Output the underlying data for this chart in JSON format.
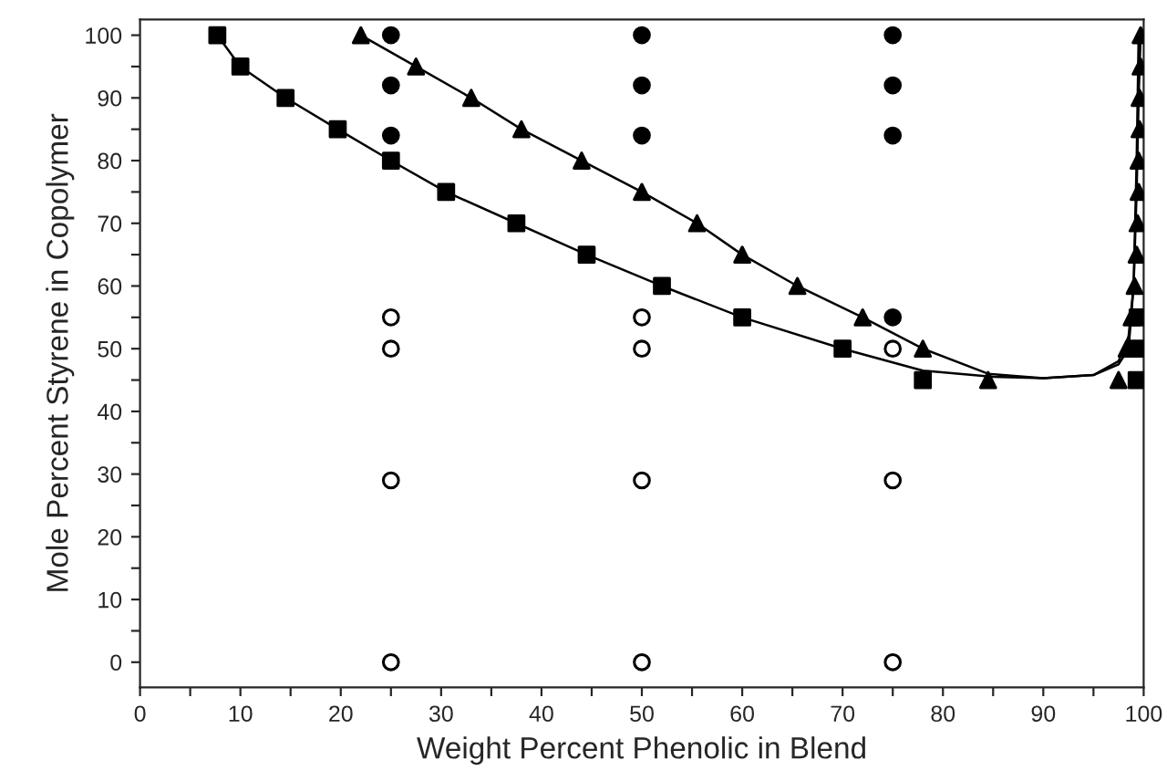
{
  "chart_data": {
    "type": "scatter",
    "xlabel": "Weight Percent Phenolic in Blend",
    "ylabel": "Mole Percent Styrene in Copolymer",
    "xlim": [
      0,
      100
    ],
    "ylim": [
      -4,
      102.5
    ],
    "xticks": [
      0,
      {
        "value": 5,
        "label": null
      },
      10,
      {
        "value": 15,
        "label": null
      },
      20,
      {
        "value": 25,
        "label": null
      },
      30,
      {
        "value": 35,
        "label": null
      },
      40,
      {
        "value": 45,
        "label": null
      },
      50,
      {
        "value": 55,
        "label": null
      },
      60,
      {
        "value": 65,
        "label": null
      },
      70,
      {
        "value": 75,
        "label": null
      },
      80,
      {
        "value": 85,
        "label": null
      },
      90,
      {
        "value": 95,
        "label": null
      },
      100
    ],
    "yticks": [
      0,
      {
        "value": 5,
        "label": null
      },
      10,
      {
        "value": 15,
        "label": null
      },
      20,
      {
        "value": 25,
        "label": null
      },
      30,
      {
        "value": 35,
        "label": null
      },
      40,
      {
        "value": 45,
        "label": null
      },
      50,
      {
        "value": 55,
        "label": null
      },
      60,
      {
        "value": 65,
        "label": null
      },
      70,
      {
        "value": 75,
        "label": null
      },
      80,
      {
        "value": 85,
        "label": null
      },
      90,
      {
        "value": 95,
        "label": null
      },
      100
    ],
    "grid": false,
    "legend": false,
    "series": [
      {
        "type": "line",
        "color": "#000000",
        "marker": "none",
        "x": [
          7.7,
          10,
          14.5,
          19.7,
          25,
          30.5,
          37.5,
          44.5,
          52,
          60,
          70,
          78,
          85,
          90,
          95,
          97.5,
          98.5,
          99,
          99.3,
          99.5
        ],
        "values": [
          100,
          95,
          90,
          85,
          80,
          75,
          70,
          65,
          60,
          55,
          50,
          46.5,
          45.5,
          45.3,
          45.8,
          47.5,
          50,
          60,
          80,
          100
        ]
      },
      {
        "type": "line",
        "color": "#000000",
        "marker": "none",
        "x": [
          22,
          27.5,
          33,
          38,
          44,
          50,
          55.5,
          60,
          65.5,
          72,
          78,
          84.5,
          90,
          95,
          97.5,
          98.5,
          99,
          99.3,
          99.5,
          99.7
        ],
        "values": [
          100,
          95,
          90,
          85,
          80,
          75,
          70,
          65,
          60,
          55,
          50,
          46,
          45.3,
          45.8,
          48,
          52,
          60,
          75,
          90,
          100
        ]
      },
      {
        "color": "#000000",
        "marker": "square",
        "x": [
          7.7,
          10,
          14.5,
          19.7,
          25,
          30.5,
          37.5,
          44.5,
          52,
          60,
          70,
          78,
          98.5,
          99.3,
          99.3,
          99.4
        ],
        "values": [
          100,
          95,
          90,
          85,
          80,
          75,
          70,
          65,
          60,
          55,
          50,
          45,
          null,
          45,
          50,
          55
        ]
      },
      {
        "color": "#000000",
        "marker": "triangle",
        "x": [
          22,
          27.5,
          33,
          38,
          44,
          50,
          55.5,
          60,
          65.5,
          72,
          78,
          84.5,
          97.5,
          98.3,
          98.8,
          99.1,
          99.3,
          99.4,
          99.5,
          99.5,
          99.6,
          99.6,
          99.7,
          99.7
        ],
        "values": [
          100,
          95,
          90,
          85,
          80,
          75,
          70,
          65,
          60,
          55,
          50,
          45,
          45,
          50,
          55,
          60,
          65,
          70,
          75,
          80,
          85,
          90,
          95,
          100
        ]
      },
      {
        "color": "#000000",
        "marker": "circle",
        "x": [
          25,
          25,
          25,
          50,
          50,
          50,
          75,
          75,
          75,
          75
        ],
        "values": [
          84,
          92,
          100,
          84,
          92,
          100,
          55,
          84,
          92,
          100
        ]
      },
      {
        "color": "#ffffff",
        "marker": "circle",
        "x": [
          25,
          25,
          25,
          25,
          50,
          50,
          50,
          50,
          75,
          75,
          75
        ],
        "values": [
          0,
          29,
          50,
          55,
          0,
          29,
          50,
          55,
          0,
          29,
          50
        ]
      }
    ]
  }
}
